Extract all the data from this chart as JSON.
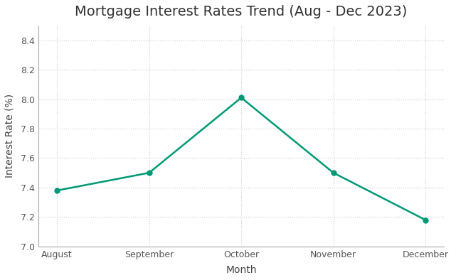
{
  "title": "Mortgage Interest Rates Trend (Aug - Dec 2023)",
  "xlabel": "Month",
  "ylabel": "Interest Rate (%)",
  "months": [
    "August",
    "September",
    "October",
    "November",
    "December"
  ],
  "rates": [
    7.38,
    7.5,
    8.01,
    7.5,
    7.18
  ],
  "line_color": "#009975",
  "marker_color": "#009975",
  "marker_style": "o",
  "marker_size": 5,
  "line_width": 1.8,
  "ylim": [
    7.0,
    8.5
  ],
  "yticks": [
    7.0,
    7.2,
    7.4,
    7.6,
    7.8,
    8.0,
    8.2,
    8.4
  ],
  "background_color": "#ffffff",
  "grid_color": "#cccccc",
  "grid_linestyle": ":",
  "title_fontsize": 14,
  "axis_label_fontsize": 10,
  "tick_fontsize": 9,
  "tick_color": "#555555",
  "spine_color": "#aaaaaa"
}
